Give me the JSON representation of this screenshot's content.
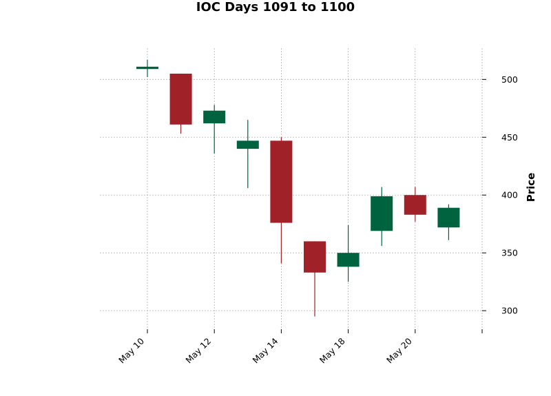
{
  "chart_data": {
    "type": "candlestick",
    "title": "IOC Days 1091 to 1100",
    "ylabel": "Price",
    "xlabel": "",
    "ylim": [
      284,
      527
    ],
    "y_ticks": [
      300,
      350,
      400,
      450,
      500
    ],
    "x_tick_labels": [
      "May 10",
      "May 12",
      "May 14",
      "May 18",
      "May 20",
      ""
    ],
    "grid": true,
    "y_axis_side": "right",
    "colors": {
      "up": "#006340",
      "down": "#a02128",
      "grid": "#b0b0b0"
    },
    "candles": [
      {
        "date": "May 10",
        "open": 509,
        "high": 517,
        "low": 502,
        "close": 511
      },
      {
        "date": "May 11",
        "open": 505,
        "high": 505,
        "low": 453,
        "close": 461
      },
      {
        "date": "May 12",
        "open": 462,
        "high": 478,
        "low": 436,
        "close": 473
      },
      {
        "date": "May 13",
        "open": 440,
        "high": 465,
        "low": 406,
        "close": 447
      },
      {
        "date": "May 14",
        "open": 447,
        "high": 450,
        "low": 341,
        "close": 376
      },
      {
        "date": "May 15",
        "open": 360,
        "high": 360,
        "low": 295,
        "close": 333
      },
      {
        "date": "May 18",
        "open": 338,
        "high": 374,
        "low": 325,
        "close": 350
      },
      {
        "date": "May 19",
        "open": 369,
        "high": 407,
        "low": 356,
        "close": 399
      },
      {
        "date": "May 20",
        "open": 400,
        "high": 407,
        "low": 377,
        "close": 383
      },
      {
        "date": "May 21",
        "open": 372,
        "high": 392,
        "low": 361,
        "close": 389
      }
    ]
  }
}
